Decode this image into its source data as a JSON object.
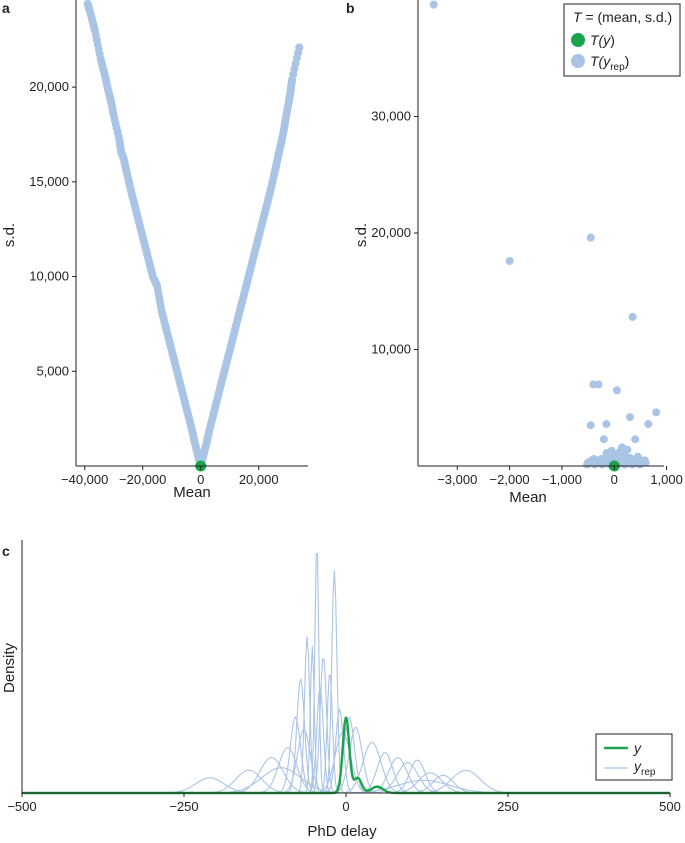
{
  "panel_labels": {
    "a": "a",
    "b": "b",
    "c": "c"
  },
  "legend_b": {
    "title_var": "T",
    "title_rest": " = (mean, s.d.)",
    "items": [
      {
        "prefix": "T(",
        "main": "y",
        "sub": "",
        "suffix": ")",
        "color": "#1aa34a"
      },
      {
        "prefix": "T(",
        "main": "y",
        "sub": "rep",
        "suffix": ")",
        "color": "#aac4e6"
      }
    ]
  },
  "legend_c": {
    "items": [
      {
        "main": "y",
        "sub": "",
        "color": "#1aa34a"
      },
      {
        "main": "y",
        "sub": "rep",
        "color": "#aac4e6"
      }
    ]
  },
  "colors": {
    "observed": "#1aa34a",
    "replicated": "#aac4e6",
    "axis": "#231f20"
  },
  "chart_data": [
    {
      "id": "a",
      "type": "scatter",
      "xlabel": "Mean",
      "ylabel": "s.d.",
      "xlim": [
        -43000,
        37000
      ],
      "ylim": [
        0,
        24600
      ],
      "xticks": [
        -40000,
        -20000,
        0,
        20000
      ],
      "xtick_labels": [
        "−40,000",
        "−20,000",
        "0",
        "20,000"
      ],
      "yticks": [
        5000,
        10000,
        15000,
        20000
      ],
      "ytick_labels": [
        "5,000",
        "10,000",
        "15,000",
        "20,000"
      ],
      "series": [
        {
          "points": [
            [
              -39000,
              24400
            ],
            [
              -38000,
              23900
            ],
            [
              -36500,
              23000
            ],
            [
              -34500,
              21500
            ],
            [
              -33000,
              20600
            ],
            [
              -32000,
              19900
            ],
            [
              -31000,
              19300
            ],
            [
              -30000,
              18500
            ],
            [
              -28000,
              17200
            ],
            [
              -27500,
              16600
            ],
            [
              -26500,
              16200
            ],
            [
              -25500,
              15500
            ],
            [
              -24000,
              14500
            ],
            [
              -22500,
              13600
            ],
            [
              -21000,
              12700
            ],
            [
              -19500,
              11800
            ],
            [
              -18000,
              10900
            ],
            [
              -16500,
              10000
            ],
            [
              -15000,
              9500
            ],
            [
              -13500,
              8200
            ],
            [
              -12000,
              7300
            ],
            [
              -10500,
              6400
            ],
            [
              -9000,
              5500
            ],
            [
              -7500,
              4600
            ],
            [
              -6000,
              3700
            ],
            [
              -4500,
              2800
            ],
            [
              -3000,
              1900
            ],
            [
              -2000,
              1200
            ],
            [
              -1000,
              600
            ],
            [
              -500,
              300
            ],
            [
              0,
              150
            ],
            [
              500,
              300
            ],
            [
              1000,
              600
            ],
            [
              2000,
              1200
            ],
            [
              3000,
              1900
            ],
            [
              4500,
              2800
            ],
            [
              6000,
              3700
            ],
            [
              7500,
              4600
            ],
            [
              9000,
              5500
            ],
            [
              10500,
              6400
            ],
            [
              12000,
              7300
            ],
            [
              13500,
              8200
            ],
            [
              15000,
              9100
            ],
            [
              16500,
              10000
            ],
            [
              18000,
              10900
            ],
            [
              19500,
              11800
            ],
            [
              21000,
              12700
            ],
            [
              22500,
              13600
            ],
            [
              24000,
              14500
            ],
            [
              25500,
              15500
            ],
            [
              26500,
              16200
            ],
            [
              27500,
              16900
            ],
            [
              28500,
              17600
            ],
            [
              29500,
              18500
            ],
            [
              30500,
              19300
            ],
            [
              31000,
              19800
            ],
            [
              31500,
              20400
            ],
            [
              34000,
              22100
            ]
          ]
        },
        {
          "points": [
            [
              0,
              0
            ]
          ]
        }
      ]
    },
    {
      "id": "b",
      "type": "scatter",
      "xlabel": "Mean",
      "ylabel": "s.d.",
      "xlim": [
        -3750,
        950
      ],
      "ylim": [
        0,
        40000
      ],
      "xticks": [
        -3000,
        -2000,
        -1000,
        0,
        1000
      ],
      "xtick_labels": [
        "−3,000",
        "−2,000",
        "−1,000",
        "0",
        "1,000"
      ],
      "yticks": [
        10000,
        20000,
        30000
      ],
      "ytick_labels": [
        "10,000",
        "20,000",
        "30,000"
      ],
      "series": [
        {
          "points": [
            [
              -3450,
              39600
            ],
            [
              -2000,
              17600
            ],
            [
              -450,
              19600
            ],
            [
              350,
              12800
            ],
            [
              -400,
              7000
            ],
            [
              -300,
              7000
            ],
            [
              50,
              6500
            ],
            [
              800,
              4600
            ],
            [
              300,
              4200
            ],
            [
              -450,
              3500
            ],
            [
              -150,
              3600
            ],
            [
              650,
              3600
            ],
            [
              400,
              2300
            ],
            [
              -200,
              2300
            ],
            [
              -500,
              300
            ],
            [
              -400,
              300
            ],
            [
              -300,
              400
            ],
            [
              -200,
              600
            ],
            [
              -100,
              800
            ],
            [
              0,
              1000
            ],
            [
              100,
              1200
            ],
            [
              200,
              900
            ],
            [
              300,
              700
            ],
            [
              400,
              500
            ],
            [
              500,
              300
            ],
            [
              600,
              300
            ],
            [
              150,
              1600
            ],
            [
              -50,
              1300
            ],
            [
              250,
              1400
            ],
            [
              -150,
              1100
            ],
            [
              50,
              400
            ],
            [
              350,
              200
            ],
            [
              -250,
              200
            ],
            [
              450,
              800
            ],
            [
              100,
              500
            ]
          ]
        },
        {
          "points": [
            [
              0,
              0
            ]
          ]
        }
      ]
    },
    {
      "id": "c",
      "type": "line",
      "xlabel": "PhD delay",
      "ylabel": "Density",
      "xlim": [
        -500,
        500
      ],
      "ylim": [
        0,
        1
      ],
      "xticks": [
        -500,
        -250,
        0,
        250,
        500
      ],
      "xtick_labels": [
        "−500",
        "−250",
        "0",
        "250",
        "500"
      ],
      "observed": {
        "peaks": [
          [
            0,
            0.3,
            5
          ],
          [
            18,
            0.06,
            6
          ],
          [
            48,
            0.025,
            9
          ]
        ]
      },
      "replicated": [
        {
          "peaks": [
            [
              -45,
              1.0,
              3
            ]
          ]
        },
        {
          "peaks": [
            [
              -18,
              0.88,
              4
            ]
          ]
        },
        {
          "peaks": [
            [
              -60,
              0.62,
              4
            ]
          ]
        },
        {
          "peaks": [
            [
              -52,
              0.58,
              3
            ]
          ]
        },
        {
          "peaks": [
            [
              -35,
              0.54,
              5
            ]
          ]
        },
        {
          "peaks": [
            [
              -25,
              0.48,
              4
            ]
          ]
        },
        {
          "peaks": [
            [
              -70,
              0.45,
              6
            ]
          ]
        },
        {
          "peaks": [
            [
              -40,
              0.42,
              5
            ]
          ]
        },
        {
          "peaks": [
            [
              -78,
              0.3,
              8
            ]
          ]
        },
        {
          "peaks": [
            [
              -65,
              0.25,
              10
            ]
          ]
        },
        {
          "peaks": [
            [
              -10,
              0.33,
              6
            ]
          ]
        },
        {
          "peaks": [
            [
              5,
              0.3,
              8
            ]
          ]
        },
        {
          "peaks": [
            [
              15,
              0.26,
              10
            ]
          ]
        },
        {
          "peaks": [
            [
              -5,
              0.24,
              12
            ]
          ]
        },
        {
          "peaks": [
            [
              -90,
              0.18,
              14
            ]
          ]
        },
        {
          "peaks": [
            [
              -115,
              0.14,
              18
            ]
          ]
        },
        {
          "peaks": [
            [
              -210,
              0.06,
              22
            ]
          ]
        },
        {
          "peaks": [
            [
              -150,
              0.09,
              20
            ]
          ]
        },
        {
          "peaks": [
            [
              60,
              0.16,
              12
            ]
          ]
        },
        {
          "peaks": [
            [
              80,
              0.14,
              14
            ]
          ]
        },
        {
          "peaks": [
            [
              95,
              0.12,
              16
            ]
          ]
        },
        {
          "peaks": [
            [
              110,
              0.13,
              12
            ]
          ]
        },
        {
          "peaks": [
            [
              130,
              0.08,
              18
            ]
          ]
        },
        {
          "peaks": [
            [
              150,
              0.07,
              16
            ]
          ]
        },
        {
          "peaks": [
            [
              185,
              0.09,
              22
            ]
          ]
        },
        {
          "peaks": [
            [
              40,
              0.2,
              14
            ]
          ]
        },
        {
          "peaks": [
            [
              -100,
              0.1,
              30
            ]
          ]
        },
        {
          "peaks": [
            [
              120,
              0.05,
              40
            ]
          ]
        }
      ]
    }
  ]
}
